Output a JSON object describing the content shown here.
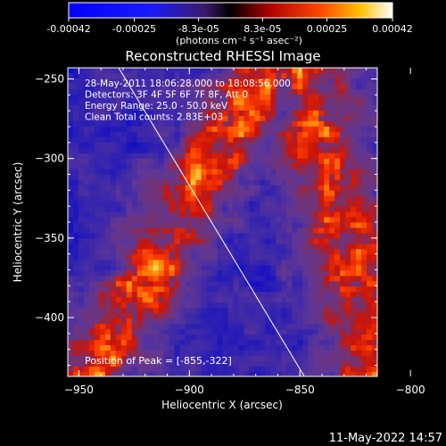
{
  "colorbar": {
    "ticks": [
      -0.00042,
      -0.00025,
      -8.3e-05,
      8.3e-05,
      0.00025,
      0.00042
    ],
    "tick_labels": [
      "-0.00042",
      "-0.00025",
      "-8.3e-05",
      "8.3e-05",
      "0.00025",
      "0.00042"
    ],
    "range": [
      -0.00042,
      0.00042
    ],
    "unit_label": "(photons cm⁻² s⁻¹ asec⁻²)"
  },
  "chart_data": {
    "type": "heatmap",
    "title": "Reconstructed RHESSI Image",
    "xlabel": "Heliocentric X (arcsec)",
    "ylabel": "Heliocentric Y (arcsec)",
    "xlim": [
      -955,
      -815
    ],
    "ylim": [
      -437,
      -243
    ],
    "xticks": [
      -950,
      -900,
      -850,
      -800
    ],
    "yticks": [
      -250,
      -300,
      -350,
      -400
    ],
    "peak_position": [
      -855,
      -322
    ],
    "limb_line": {
      "x": [
        -932,
        -848
      ],
      "y": [
        -243,
        -437
      ]
    },
    "annotations": [
      "28-May-2011 18:06:28.000 to 18:08:56.000",
      "Detectors: 3F 4F 5F 6F 7F 8F, Att 0",
      "Energy Range: 25.0 - 50.0 keV",
      "Clean     Total counts: 2.83E+03"
    ],
    "peak_label": "Position of Peak = [-855,-322]",
    "colors": {
      "low": "#0000ff",
      "zero": "#6a3aa0",
      "mid": "#ff2a00",
      "high": "#ffffff"
    }
  },
  "footer": {
    "timestamp": "11-May-2022 14:57"
  }
}
